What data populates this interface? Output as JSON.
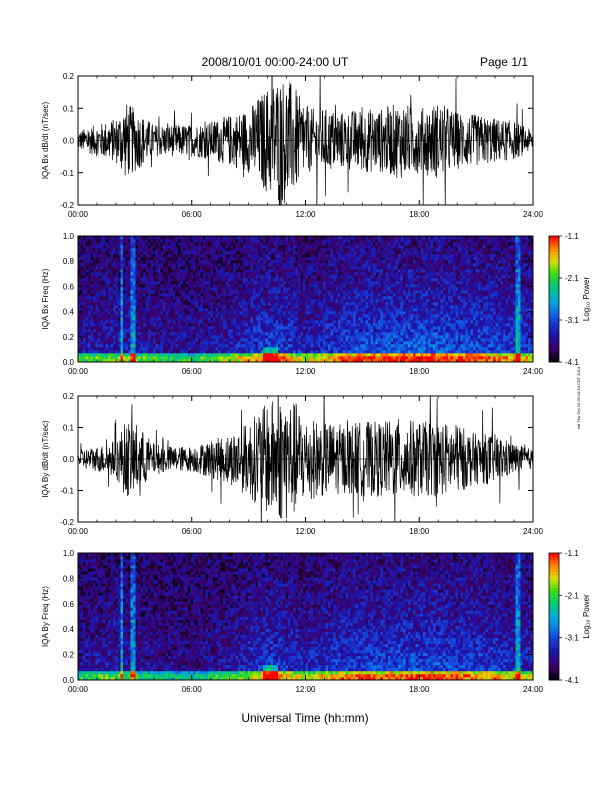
{
  "header": {
    "title": "2008/10/01   00:00-24:00 UT",
    "page": "Page 1/1"
  },
  "footer": {
    "xlabel": "Universal Time (hh:mm)",
    "side_note": "mtl Thu Oct 23 09:10:34 CDT 2014"
  },
  "chart_data": [
    {
      "type": "line",
      "ylabel": "IQA Bx dB/dt (nT/sec)",
      "xlim": [
        0,
        24
      ],
      "ylim": [
        -0.2,
        0.2
      ],
      "xticks": [
        "00:00",
        "06:00",
        "12:00",
        "18:00",
        "24:00"
      ],
      "yticks": [
        "-0.2",
        "-0.1",
        "0.0",
        "0.1",
        "0.2"
      ],
      "series": [
        {
          "envelope_x": [
            0,
            1,
            2,
            2.5,
            3,
            4,
            5,
            6,
            7,
            8,
            9,
            10,
            10.5,
            11,
            11.5,
            12,
            13,
            14,
            15,
            16,
            17,
            18,
            19,
            20,
            21,
            22,
            23,
            24
          ],
          "envelope_amp": [
            0.03,
            0.05,
            0.07,
            0.12,
            0.1,
            0.05,
            0.05,
            0.05,
            0.06,
            0.08,
            0.1,
            0.17,
            0.2,
            0.2,
            0.16,
            0.1,
            0.1,
            0.09,
            0.1,
            0.1,
            0.12,
            0.1,
            0.12,
            0.09,
            0.08,
            0.07,
            0.06,
            0.03
          ]
        }
      ]
    },
    {
      "type": "heatmap",
      "ylabel": "IQA Bx Freq (Hz)",
      "xlim": [
        0,
        24
      ],
      "ylim": [
        0,
        1.0
      ],
      "xticks": [
        "00:00",
        "06:00",
        "12:00",
        "18:00",
        "24:00"
      ],
      "yticks": [
        "0.0",
        "0.2",
        "0.4",
        "0.6",
        "0.8",
        "1.0"
      ],
      "colorbar": {
        "label": "Log₁₀ Power",
        "ticks": [
          "-1.1",
          "-2.1",
          "-3.1",
          "-4.1"
        ],
        "range": [
          -4.1,
          -1.1
        ]
      },
      "activity": [
        {
          "x": 0,
          "a": 0.35
        },
        {
          "x": 2,
          "a": 0.45
        },
        {
          "x": 4,
          "a": 0.35
        },
        {
          "x": 6,
          "a": 0.3
        },
        {
          "x": 8,
          "a": 0.45
        },
        {
          "x": 10,
          "a": 0.75
        },
        {
          "x": 11,
          "a": 0.7
        },
        {
          "x": 12,
          "a": 0.5
        },
        {
          "x": 14,
          "a": 0.75
        },
        {
          "x": 16,
          "a": 0.85
        },
        {
          "x": 18,
          "a": 0.9
        },
        {
          "x": 20,
          "a": 0.85
        },
        {
          "x": 22,
          "a": 0.75
        },
        {
          "x": 24,
          "a": 0.6
        }
      ],
      "vertical_bursts_hours": [
        2.3,
        2.8,
        3.0,
        23.2
      ]
    },
    {
      "type": "line",
      "ylabel": "IQA By dB/dt (nT/sec)",
      "xlim": [
        0,
        24
      ],
      "ylim": [
        -0.2,
        0.2
      ],
      "xticks": [
        "00:00",
        "06:00",
        "12:00",
        "18:00",
        "24:00"
      ],
      "yticks": [
        "-0.2",
        "-0.1",
        "0.0",
        "0.1",
        "0.2"
      ],
      "series": [
        {
          "envelope_x": [
            0,
            1,
            2,
            2.5,
            3,
            4,
            5,
            6,
            7,
            8,
            9,
            10,
            10.5,
            11,
            11.5,
            12,
            13,
            14,
            15,
            16,
            17,
            18,
            19,
            20,
            21,
            22,
            23,
            24
          ],
          "envelope_amp": [
            0.03,
            0.04,
            0.06,
            0.12,
            0.12,
            0.05,
            0.04,
            0.04,
            0.06,
            0.08,
            0.12,
            0.18,
            0.2,
            0.2,
            0.18,
            0.13,
            0.12,
            0.11,
            0.12,
            0.12,
            0.13,
            0.12,
            0.12,
            0.11,
            0.08,
            0.08,
            0.05,
            0.03
          ]
        }
      ]
    },
    {
      "type": "heatmap",
      "ylabel": "IQA By Freq (Hz)",
      "xlim": [
        0,
        24
      ],
      "ylim": [
        0,
        1.0
      ],
      "xticks": [
        "00:00",
        "06:00",
        "12:00",
        "18:00",
        "24:00"
      ],
      "yticks": [
        "0.0",
        "0.2",
        "0.4",
        "0.6",
        "0.8",
        "1.0"
      ],
      "colorbar": {
        "label": "Log₁₀ Power",
        "ticks": [
          "-1.1",
          "-2.1",
          "-3.1",
          "-4.1"
        ],
        "range": [
          -4.1,
          -1.1
        ]
      },
      "activity": [
        {
          "x": 0,
          "a": 0.3
        },
        {
          "x": 2,
          "a": 0.4
        },
        {
          "x": 4,
          "a": 0.25
        },
        {
          "x": 6,
          "a": 0.2
        },
        {
          "x": 8,
          "a": 0.35
        },
        {
          "x": 10,
          "a": 0.7
        },
        {
          "x": 11,
          "a": 0.6
        },
        {
          "x": 12,
          "a": 0.5
        },
        {
          "x": 14,
          "a": 0.7
        },
        {
          "x": 16,
          "a": 0.75
        },
        {
          "x": 18,
          "a": 0.8
        },
        {
          "x": 20,
          "a": 0.75
        },
        {
          "x": 22,
          "a": 0.65
        },
        {
          "x": 24,
          "a": 0.5
        }
      ],
      "vertical_bursts_hours": [
        2.3,
        2.8,
        3.0,
        23.2
      ]
    }
  ]
}
